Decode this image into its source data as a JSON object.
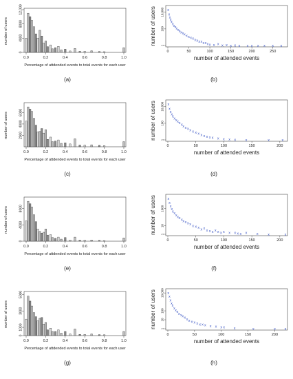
{
  "figure": {
    "labels": [
      "(a)",
      "(b)",
      "(c)",
      "(d)",
      "(e)",
      "(f)",
      "(g)",
      "(h)"
    ]
  },
  "chart_data": [
    {
      "id": "a",
      "type": "bar",
      "xlabel": "Percentage of attdended events to total events for each user",
      "ylabel": "number of users",
      "xlim": [
        0,
        1.0
      ],
      "ylim": [
        0,
        12000
      ],
      "xticks": [
        "0.0",
        "0.2",
        "0.4",
        "0.6",
        "0.8",
        "1.0"
      ],
      "yticks": [
        "0",
        "4000",
        "8000",
        "12,000"
      ],
      "x": [
        0.0,
        0.02,
        0.04,
        0.06,
        0.08,
        0.1,
        0.12,
        0.14,
        0.16,
        0.18,
        0.2,
        0.22,
        0.25,
        0.27,
        0.3,
        0.33,
        0.36,
        0.4,
        0.45,
        0.5,
        0.55,
        0.6,
        0.67,
        0.75,
        0.8,
        1.0
      ],
      "values": [
        4000,
        11000,
        10000,
        9000,
        7200,
        5200,
        4000,
        6200,
        4600,
        2600,
        3200,
        1600,
        2100,
        1000,
        1300,
        1700,
        700,
        900,
        400,
        1100,
        300,
        300,
        450,
        250,
        200,
        1300
      ]
    },
    {
      "id": "b",
      "type": "scatter",
      "xlabel": "number of attended events",
      "ylabel": "number of users",
      "xlim": [
        0,
        280
      ],
      "yscale": "log",
      "xticks": [
        "0",
        "50",
        "100",
        "150",
        "200",
        "250"
      ],
      "yticks": [
        "1",
        "100",
        "10,000"
      ],
      "x": [
        1,
        3,
        5,
        7,
        9,
        12,
        15,
        18,
        21,
        25,
        28,
        32,
        36,
        40,
        45,
        50,
        55,
        60,
        65,
        70,
        75,
        80,
        85,
        90,
        95,
        100,
        110,
        120,
        130,
        140,
        150,
        160,
        170,
        190,
        200,
        215,
        230,
        250,
        270
      ],
      "values": [
        20000,
        6000,
        2500,
        1200,
        700,
        400,
        250,
        160,
        110,
        80,
        55,
        40,
        30,
        22,
        15,
        12,
        9,
        7,
        5,
        4,
        3,
        3,
        2,
        2,
        1.6,
        1.3,
        1.2,
        1.5,
        1.1,
        1.2,
        1.0,
        1.1,
        1.0,
        1.0,
        1.0,
        1.0,
        1.0,
        1.0,
        1.0
      ]
    },
    {
      "id": "c",
      "type": "bar",
      "xlabel": "Percentage of attdended events to total events for each user",
      "ylabel": "number of users",
      "xlim": [
        0,
        1.0
      ],
      "ylim": [
        0,
        7500
      ],
      "xticks": [
        "0.0",
        "0.2",
        "0.4",
        "0.6",
        "0.8",
        "1.0"
      ],
      "yticks": [
        "2000",
        "4000",
        "6000"
      ],
      "x": [
        0.0,
        0.02,
        0.04,
        0.06,
        0.08,
        0.1,
        0.12,
        0.14,
        0.16,
        0.18,
        0.2,
        0.22,
        0.25,
        0.27,
        0.3,
        0.33,
        0.36,
        0.4,
        0.45,
        0.5,
        0.55,
        0.6,
        0.67,
        0.75,
        0.8,
        1.0
      ],
      "values": [
        4500,
        7000,
        6600,
        6200,
        5000,
        3800,
        2600,
        2700,
        3200,
        2400,
        3000,
        1300,
        1700,
        900,
        1000,
        1200,
        600,
        700,
        500,
        1400,
        300,
        300,
        350,
        250,
        200,
        900
      ]
    },
    {
      "id": "d",
      "type": "scatter",
      "xlabel": "number of attended events",
      "ylabel": "number of users",
      "xlim": [
        0,
        210
      ],
      "yscale": "log",
      "xticks": [
        "0",
        "50",
        "100",
        "150",
        "200"
      ],
      "yticks": [
        "1",
        "100",
        "10,000"
      ],
      "x": [
        1,
        3,
        5,
        7,
        9,
        12,
        15,
        18,
        21,
        25,
        28,
        32,
        36,
        40,
        45,
        50,
        55,
        60,
        65,
        70,
        75,
        80,
        90,
        100,
        110,
        120,
        140,
        180,
        205
      ],
      "values": [
        20000,
        6000,
        2500,
        1200,
        700,
        400,
        250,
        160,
        110,
        70,
        45,
        30,
        22,
        15,
        10,
        8,
        6,
        4,
        3,
        2.5,
        2,
        1.8,
        1.5,
        1.3,
        1.2,
        1.1,
        1.0,
        1.0,
        1.0
      ]
    },
    {
      "id": "e",
      "type": "bar",
      "xlabel": "Percentage of attdended events to total events for each user",
      "ylabel": "number of users",
      "xlim": [
        0,
        1.0
      ],
      "ylim": [
        0,
        10500
      ],
      "xticks": [
        "0.0",
        "0.2",
        "0.4",
        "0.6",
        "0.8",
        "1.0"
      ],
      "yticks": [
        "0",
        "4000",
        "8000"
      ],
      "x": [
        0.0,
        0.02,
        0.04,
        0.06,
        0.08,
        0.1,
        0.12,
        0.14,
        0.16,
        0.18,
        0.2,
        0.22,
        0.25,
        0.27,
        0.3,
        0.33,
        0.36,
        0.4,
        0.45,
        0.5,
        0.55,
        0.6,
        0.67,
        0.75,
        0.8,
        1.0
      ],
      "values": [
        5000,
        9800,
        9200,
        8400,
        6500,
        4800,
        3000,
        2400,
        2000,
        2200,
        3000,
        1500,
        1600,
        900,
        700,
        1000,
        500,
        900,
        300,
        1000,
        250,
        250,
        300,
        200,
        150,
        800
      ]
    },
    {
      "id": "f",
      "type": "scatter",
      "xlabel": "number of attended events",
      "ylabel": "number of users",
      "xlim": [
        0,
        210
      ],
      "yscale": "log",
      "xticks": [
        "0",
        "50",
        "100",
        "150",
        "200"
      ],
      "yticks": [
        "1",
        "10",
        "1000"
      ],
      "x": [
        1,
        3,
        5,
        7,
        9,
        12,
        15,
        18,
        21,
        25,
        28,
        32,
        36,
        40,
        45,
        50,
        55,
        60,
        65,
        70,
        75,
        80,
        85,
        90,
        95,
        100,
        110,
        120,
        125,
        130,
        140,
        160,
        180,
        210
      ],
      "values": [
        15000,
        5000,
        2000,
        900,
        500,
        300,
        180,
        110,
        80,
        50,
        35,
        28,
        20,
        15,
        10,
        8,
        6,
        4,
        5,
        3,
        2.5,
        2,
        3,
        2,
        1.5,
        2,
        1.6,
        1.5,
        1.3,
        1.2,
        1.5,
        1.2,
        1.0,
        1.0
      ]
    },
    {
      "id": "g",
      "type": "bar",
      "xlabel": "Percentage of attdended events to total events for each user",
      "ylabel": "number of users",
      "xlim": [
        0,
        1.0
      ],
      "ylim": [
        0,
        5200
      ],
      "xticks": [
        "0.0",
        "0.2",
        "0.4",
        "0.6",
        "0.8",
        "1.0"
      ],
      "yticks": [
        "0",
        "1000",
        "3000",
        "5000"
      ],
      "x": [
        0.0,
        0.02,
        0.04,
        0.06,
        0.08,
        0.1,
        0.12,
        0.14,
        0.16,
        0.18,
        0.2,
        0.22,
        0.25,
        0.27,
        0.3,
        0.33,
        0.36,
        0.4,
        0.45,
        0.5,
        0.55,
        0.6,
        0.67,
        0.75,
        0.8,
        1.0
      ],
      "values": [
        2000,
        4800,
        4200,
        3600,
        2800,
        2300,
        1800,
        2100,
        2200,
        1400,
        1600,
        700,
        900,
        500,
        500,
        700,
        300,
        500,
        200,
        800,
        150,
        150,
        200,
        120,
        100,
        500
      ]
    },
    {
      "id": "h",
      "type": "scatter",
      "xlabel": "number of attended events",
      "ylabel": "number of users",
      "xlim": [
        0,
        220
      ],
      "yscale": "log",
      "xticks": [
        "0",
        "50",
        "100",
        "150",
        "200"
      ],
      "yticks": [
        "1",
        "10",
        "100",
        "10,000"
      ],
      "x": [
        1,
        3,
        5,
        7,
        9,
        12,
        15,
        18,
        21,
        25,
        28,
        32,
        36,
        40,
        45,
        50,
        55,
        60,
        65,
        70,
        80,
        90,
        100,
        105,
        125,
        160,
        200,
        220
      ],
      "values": [
        10000,
        4000,
        1500,
        700,
        400,
        200,
        120,
        80,
        50,
        35,
        25,
        18,
        12,
        8,
        6,
        5,
        4,
        3,
        3,
        2.5,
        2,
        1.8,
        1.5,
        1.5,
        1.2,
        1.0,
        1.0,
        1.0
      ]
    }
  ]
}
